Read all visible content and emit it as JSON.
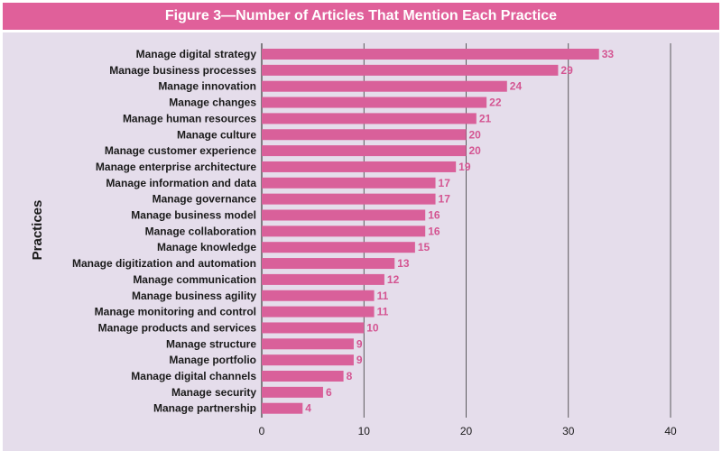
{
  "chart_data": {
    "type": "bar",
    "orientation": "horizontal",
    "title": "Figure 3—Number of Articles That Mention Each Practice",
    "xlabel": "",
    "ylabel": "Practices",
    "xlim": [
      0,
      40
    ],
    "xticks": [
      0,
      10,
      20,
      30,
      40
    ],
    "grid": true,
    "categories": [
      "Manage digital strategy",
      "Manage business processes",
      "Manage innovation",
      "Manage changes",
      "Manage human resources",
      "Manage culture",
      "Manage customer experience",
      "Manage enterprise architecture",
      "Manage information and data",
      "Manage governance",
      "Manage business model",
      "Manage collaboration",
      "Manage knowledge",
      "Manage digitization and automation",
      "Manage communication",
      "Manage business agility",
      "Manage monitoring and control",
      "Manage products and services",
      "Manage structure",
      "Manage portfolio",
      "Manage digital channels",
      "Manage security",
      "Manage partnership"
    ],
    "values": [
      33,
      29,
      24,
      22,
      21,
      20,
      20,
      19,
      17,
      17,
      16,
      16,
      15,
      13,
      12,
      11,
      11,
      10,
      9,
      9,
      8,
      6,
      4
    ],
    "colors": {
      "title_bar": "#e0609a",
      "bar": "#d9609a",
      "value_label": "#d45592",
      "plot_background": "#e5ddeb",
      "grid": "#3a3a3a"
    }
  }
}
